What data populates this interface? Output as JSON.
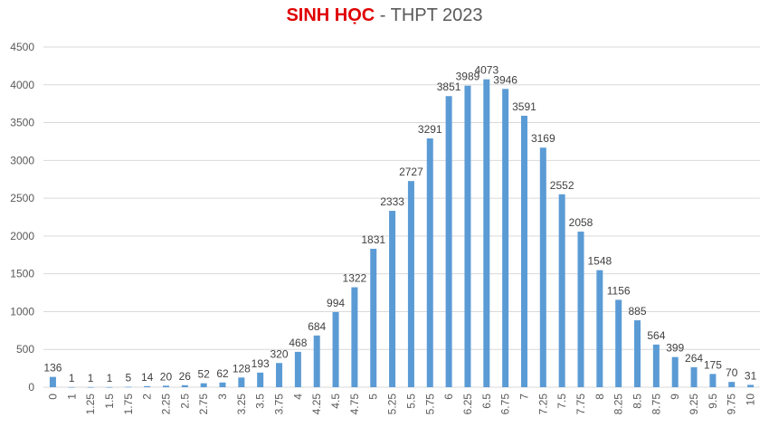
{
  "chart_data": {
    "type": "bar",
    "title_highlight": "SINH HỌC",
    "title_rest": " - THPT 2023",
    "xlabel": "",
    "ylabel": "",
    "ylim": [
      0,
      4500
    ],
    "yticks": [
      0,
      500,
      1000,
      1500,
      2000,
      2500,
      3000,
      3500,
      4000,
      4500
    ],
    "grid": true,
    "legend": "none",
    "bar_color": "#5b9bd5",
    "categories": [
      "0",
      "1",
      "1.25",
      "1.5",
      "1.75",
      "2",
      "2.25",
      "2.5",
      "2.75",
      "3",
      "3.25",
      "3.5",
      "3.75",
      "4",
      "4.25",
      "4.5",
      "4.75",
      "5",
      "5.25",
      "5.5",
      "5.75",
      "6",
      "6.25",
      "6.5",
      "6.75",
      "7",
      "7.25",
      "7.5",
      "7.75",
      "8",
      "8.25",
      "8.5",
      "8.75",
      "9",
      "9.25",
      "9.5",
      "9.75",
      "10"
    ],
    "values": [
      136,
      1,
      1,
      1,
      5,
      14,
      20,
      26,
      52,
      62,
      128,
      193,
      320,
      468,
      684,
      994,
      1322,
      1831,
      2333,
      2727,
      3291,
      3851,
      3989,
      4073,
      3946,
      3591,
      3169,
      2552,
      2058,
      1548,
      1156,
      885,
      564,
      399,
      264,
      175,
      70,
      31
    ]
  }
}
